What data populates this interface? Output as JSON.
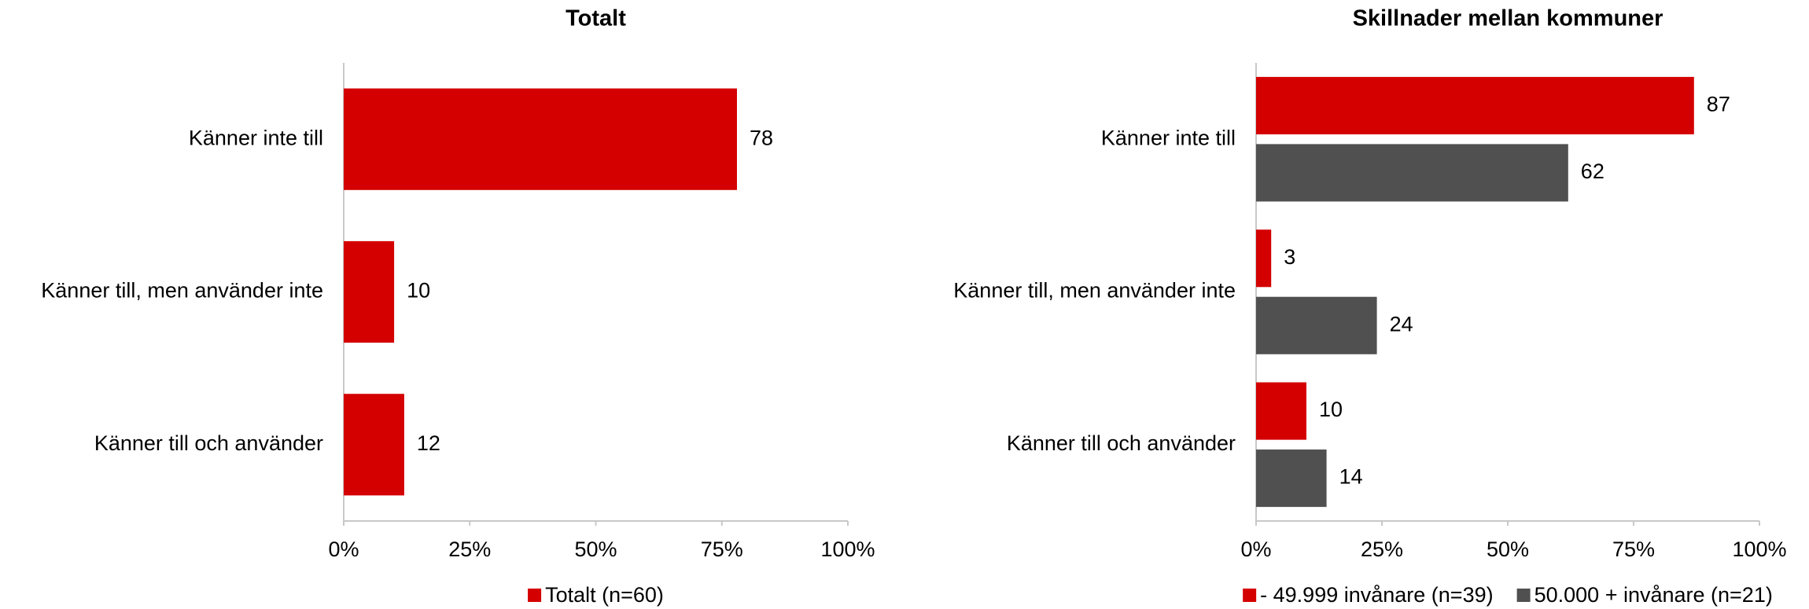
{
  "chart_data": [
    {
      "type": "hbar",
      "title": "Totalt",
      "categories": [
        "Känner inte till",
        "Känner till, men använder inte",
        "Känner till och använder"
      ],
      "series": [
        {
          "name": "Totalt (n=60)",
          "color": "#d40000",
          "values": [
            78,
            10,
            12
          ]
        }
      ],
      "xlim": [
        0,
        100
      ],
      "xticks": [
        {
          "value": 0,
          "label": "0%"
        },
        {
          "value": 25,
          "label": "25%"
        },
        {
          "value": 50,
          "label": "50%"
        },
        {
          "value": 75,
          "label": "75%"
        },
        {
          "value": 100,
          "label": "100%"
        }
      ],
      "legend": "bottom"
    },
    {
      "type": "hbar",
      "title": "Skillnader mellan kommuner",
      "categories": [
        "Känner inte till",
        "Känner till, men använder inte",
        "Känner till och använder"
      ],
      "series": [
        {
          "name": "- 49.999 invånare (n=39)",
          "color": "#d40000",
          "values": [
            87,
            3,
            10
          ]
        },
        {
          "name": "50.000 + invånare (n=21)",
          "color": "#505050",
          "values": [
            62,
            24,
            14
          ]
        }
      ],
      "xlim": [
        0,
        100
      ],
      "xticks": [
        {
          "value": 0,
          "label": "0%"
        },
        {
          "value": 25,
          "label": "25%"
        },
        {
          "value": 50,
          "label": "50%"
        },
        {
          "value": 75,
          "label": "75%"
        },
        {
          "value": 100,
          "label": "100%"
        }
      ],
      "legend": "bottom"
    }
  ]
}
